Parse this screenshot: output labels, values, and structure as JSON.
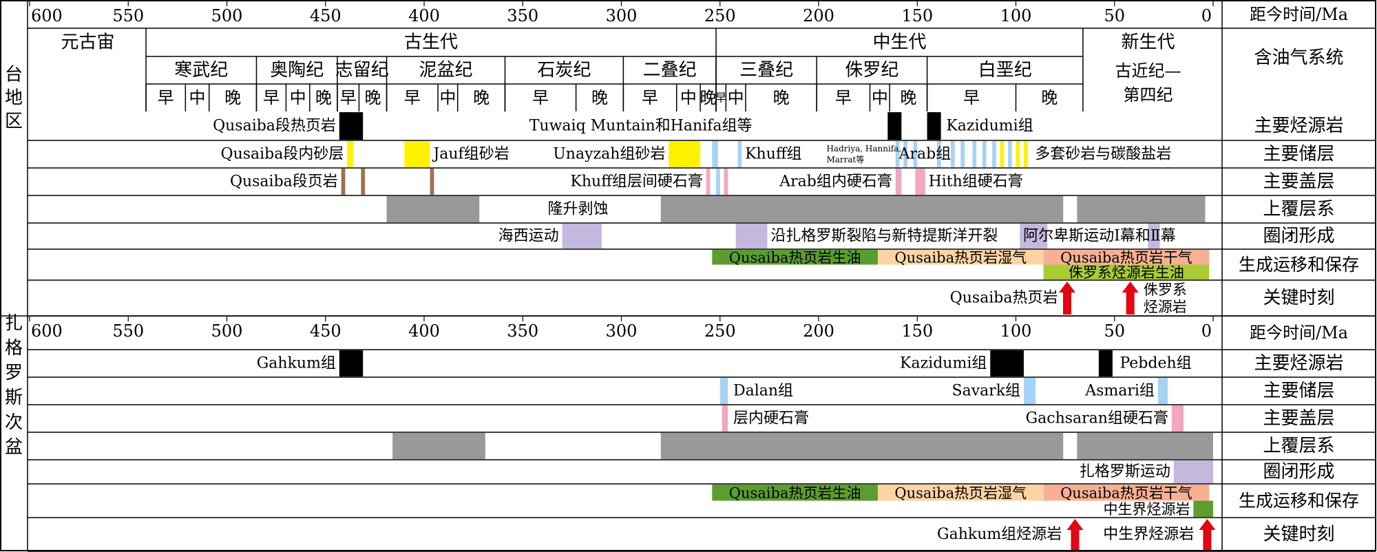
{
  "axis": {
    "ticks": [
      "600",
      "550",
      "500",
      "450",
      "400",
      "350",
      "300",
      "250",
      "200",
      "150",
      "100",
      "50",
      "0"
    ],
    "tick_values": [
      600,
      550,
      500,
      450,
      400,
      350,
      300,
      250,
      200,
      150,
      100,
      50,
      0
    ],
    "unit_label": "距今时间/Ma"
  },
  "regions": [
    {
      "name": "台地区",
      "chars": [
        "台",
        "地",
        "区"
      ]
    },
    {
      "name": "扎格罗斯次盆",
      "chars": [
        "扎",
        "格",
        "罗",
        "斯",
        "次",
        "盆"
      ]
    }
  ],
  "header": {
    "eons": [
      {
        "label": "元古宙",
        "start": 600,
        "end": 541
      },
      {
        "label": "古生代",
        "start": 541,
        "end": 252
      },
      {
        "label": "中生代",
        "start": 252,
        "end": 66
      },
      {
        "label": "新生代",
        "start": 66,
        "end": 0
      }
    ],
    "periods": [
      {
        "label": "寒武纪",
        "start": 541,
        "end": 485
      },
      {
        "label": "奥陶纪",
        "start": 485,
        "end": 444
      },
      {
        "label": "志留纪",
        "start": 444,
        "end": 419
      },
      {
        "label": "泥盆纪",
        "start": 419,
        "end": 359
      },
      {
        "label": "石炭纪",
        "start": 359,
        "end": 299
      },
      {
        "label": "二叠纪",
        "start": 299,
        "end": 252
      },
      {
        "label": "三叠纪",
        "start": 252,
        "end": 201
      },
      {
        "label": "侏罗纪",
        "start": 201,
        "end": 145
      },
      {
        "label": "白垩纪",
        "start": 145,
        "end": 66
      }
    ],
    "epochs": [
      {
        "label": "早",
        "start": 541,
        "end": 521
      },
      {
        "label": "中",
        "start": 521,
        "end": 509
      },
      {
        "label": "晚",
        "start": 509,
        "end": 485
      },
      {
        "label": "早",
        "start": 485,
        "end": 470
      },
      {
        "label": "中",
        "start": 470,
        "end": 458
      },
      {
        "label": "晚",
        "start": 458,
        "end": 444
      },
      {
        "label": "早",
        "start": 444,
        "end": 433
      },
      {
        "label": "晚",
        "start": 433,
        "end": 419
      },
      {
        "label": "早",
        "start": 419,
        "end": 393
      },
      {
        "label": "中",
        "start": 393,
        "end": 383
      },
      {
        "label": "晚",
        "start": 383,
        "end": 359
      },
      {
        "label": "早",
        "start": 359,
        "end": 323
      },
      {
        "label": "晚",
        "start": 323,
        "end": 299
      },
      {
        "label": "早",
        "start": 299,
        "end": 272
      },
      {
        "label": "中",
        "start": 272,
        "end": 260
      },
      {
        "label": "晚",
        "start": 260,
        "end": 252
      },
      {
        "label": "早",
        "start": 252,
        "end": 247
      },
      {
        "label": "中",
        "start": 247,
        "end": 237
      },
      {
        "label": "晚",
        "start": 237,
        "end": 201
      },
      {
        "label": "早",
        "start": 201,
        "end": 174
      },
      {
        "label": "中",
        "start": 174,
        "end": 164
      },
      {
        "label": "晚",
        "start": 164,
        "end": 145
      },
      {
        "label": "早",
        "start": 145,
        "end": 100
      },
      {
        "label": "晚",
        "start": 100,
        "end": 66
      }
    ],
    "cenozoic_label_1": "古近纪—",
    "cenozoic_label_2": "第四纪",
    "system_label": "含油气系统"
  },
  "colors": {
    "black": "#000000",
    "yellow": "#fff200",
    "lightblue": "#a6d3f5",
    "brown": "#a0704e",
    "pink": "#f2a7c0",
    "gray": "#999999",
    "lavender": "#c4b8df",
    "green": "#5b9e2f",
    "peach": "#fcd4a4",
    "salmon": "#f8b094",
    "yellowgreen": "#a9cc35",
    "red": "#e30613"
  },
  "platform": {
    "rows": [
      {
        "label": "主要烃源岩"
      },
      {
        "label": "主要储层"
      },
      {
        "label": "主要盖层"
      },
      {
        "label": "上覆层系"
      },
      {
        "label": "圈闭形成"
      },
      {
        "label": "生成运移和保存"
      },
      {
        "label": "关键时刻"
      }
    ],
    "bars": [
      {
        "row": 0,
        "start": 443,
        "end": 431,
        "color": "black"
      },
      {
        "row": 0,
        "start": 165,
        "end": 158,
        "color": "black"
      },
      {
        "row": 0,
        "start": 145,
        "end": 138,
        "color": "black"
      },
      {
        "row": 1,
        "start": 439,
        "end": 436,
        "color": "yellow"
      },
      {
        "row": 1,
        "start": 410,
        "end": 397,
        "color": "yellow"
      },
      {
        "row": 1,
        "start": 276,
        "end": 260,
        "color": "yellow"
      },
      {
        "row": 1,
        "start": 254,
        "end": 251,
        "color": "lightblue"
      },
      {
        "row": 1,
        "start": 241,
        "end": 239,
        "color": "lightblue"
      },
      {
        "row": 1,
        "start": 161,
        "end": 159,
        "color": "lightblue"
      },
      {
        "row": 1,
        "start": 157,
        "end": 155,
        "color": "lightblue"
      },
      {
        "row": 1,
        "start": 152,
        "end": 150,
        "color": "lightblue"
      },
      {
        "row": 1,
        "start": 140,
        "end": 138,
        "color": "lightblue"
      },
      {
        "row": 1,
        "start": 133,
        "end": 131,
        "color": "lightblue"
      },
      {
        "row": 1,
        "start": 128,
        "end": 126,
        "color": "lightblue"
      },
      {
        "row": 1,
        "start": 122,
        "end": 120,
        "color": "lightblue"
      },
      {
        "row": 1,
        "start": 117,
        "end": 115,
        "color": "lightblue"
      },
      {
        "row": 1,
        "start": 112,
        "end": 110,
        "color": "lightblue"
      },
      {
        "row": 1,
        "start": 108,
        "end": 106,
        "color": "yellow"
      },
      {
        "row": 1,
        "start": 104,
        "end": 102,
        "color": "lightblue"
      },
      {
        "row": 1,
        "start": 100,
        "end": 98,
        "color": "yellow"
      },
      {
        "row": 1,
        "start": 96,
        "end": 94,
        "color": "yellow"
      },
      {
        "row": 2,
        "start": 442,
        "end": 440,
        "color": "brown"
      },
      {
        "row": 2,
        "start": 432,
        "end": 430,
        "color": "brown"
      },
      {
        "row": 2,
        "start": 397,
        "end": 395,
        "color": "brown"
      },
      {
        "row": 2,
        "start": 257,
        "end": 255,
        "color": "pink"
      },
      {
        "row": 2,
        "start": 252,
        "end": 250,
        "color": "lightblue"
      },
      {
        "row": 2,
        "start": 248,
        "end": 246,
        "color": "pink"
      },
      {
        "row": 2,
        "start": 161,
        "end": 158,
        "color": "pink"
      },
      {
        "row": 2,
        "start": 151,
        "end": 146,
        "color": "pink"
      },
      {
        "row": 3,
        "start": 419,
        "end": 372,
        "color": "gray"
      },
      {
        "row": 3,
        "start": 280,
        "end": 76,
        "color": "gray"
      },
      {
        "row": 3,
        "start": 69,
        "end": 4,
        "color": "gray"
      },
      {
        "row": 4,
        "start": 330,
        "end": 310,
        "color": "lavender"
      },
      {
        "row": 4,
        "start": 242,
        "end": 226,
        "color": "lavender"
      },
      {
        "row": 4,
        "start": 98,
        "end": 84,
        "color": "lavender"
      },
      {
        "row": 4,
        "start": 33,
        "end": 27,
        "color": "lavender"
      },
      {
        "row": 5,
        "start": 254,
        "end": 170,
        "color": "green",
        "half": "top"
      },
      {
        "row": 5,
        "start": 170,
        "end": 86,
        "color": "peach",
        "half": "top"
      },
      {
        "row": 5,
        "start": 86,
        "end": 2,
        "color": "salmon",
        "half": "top"
      },
      {
        "row": 5,
        "start": 86,
        "end": 2,
        "color": "yellowgreen",
        "half": "bottom"
      }
    ],
    "labels": [
      {
        "text": "Qusaiba段热页岩",
        "row": 0,
        "at": 444,
        "anchor": "end"
      },
      {
        "text": "Tuwaiq Muntain和Hanifa组等",
        "row": 0,
        "at": 233,
        "anchor": "end"
      },
      {
        "text": "Kazidumi组",
        "row": 0,
        "at": 136,
        "anchor": "start"
      },
      {
        "text": "Qusaiba段内砂层",
        "row": 1,
        "at": 440,
        "anchor": "end"
      },
      {
        "text": "Jauf组砂岩",
        "row": 1,
        "at": 396,
        "anchor": "start"
      },
      {
        "text": "Unayzah组砂岩",
        "row": 1,
        "at": 277,
        "anchor": "end"
      },
      {
        "text": "Khuff组",
        "row": 1,
        "at": 238,
        "anchor": "start"
      },
      {
        "text": "Arab组",
        "row": 1,
        "at": 160,
        "anchor": "start"
      },
      {
        "text": "多套砂岩与碳酸盐岩",
        "row": 1,
        "at": 91,
        "anchor": "start"
      },
      {
        "text": "Qusaiba段页岩",
        "row": 2,
        "at": 443,
        "anchor": "end"
      },
      {
        "text": "Khuff组层间硬石膏",
        "row": 2,
        "at": 258,
        "anchor": "end"
      },
      {
        "text": "Arab组内硬石膏",
        "row": 2,
        "at": 162,
        "anchor": "end"
      },
      {
        "text": "Hith组硬石膏",
        "row": 2,
        "at": 145,
        "anchor": "start"
      },
      {
        "text": "隆升剥蚀",
        "row": 3,
        "at": 322,
        "anchor": "middle"
      },
      {
        "text": "海西运动",
        "row": 4,
        "at": 331,
        "anchor": "end"
      },
      {
        "text": "沿扎格罗斯裂陷与新特提斯洋开裂",
        "row": 4,
        "at": 225,
        "anchor": "start"
      },
      {
        "text": "阿尔卑斯运动Ⅰ幕和Ⅱ幕",
        "row": 4,
        "at": 97,
        "anchor": "start"
      },
      {
        "text": "Qusaiba热页岩生油",
        "row": 5,
        "at": 212,
        "anchor": "middle",
        "half": "top"
      },
      {
        "text": "Qusaiba热页岩湿气",
        "row": 5,
        "at": 128,
        "anchor": "middle",
        "half": "top"
      },
      {
        "text": "Qusaiba热页岩干气",
        "row": 5,
        "at": 44,
        "anchor": "middle",
        "half": "top"
      },
      {
        "text": "侏罗系烃源岩生油",
        "row": 5,
        "at": 44,
        "anchor": "middle",
        "half": "bottom"
      },
      {
        "text": "Qusaiba热页岩",
        "row": 6,
        "at": 78,
        "anchor": "end"
      },
      {
        "text": "侏罗系",
        "row": 6,
        "at": 36,
        "anchor": "start",
        "half": "top"
      },
      {
        "text": "烃源岩",
        "row": 6,
        "at": 36,
        "anchor": "start",
        "half": "bottom"
      }
    ],
    "subscript_1": "Hadriya, Hannifa,",
    "subscript_2": "Marrat等",
    "arrows": [
      {
        "at": 74
      },
      {
        "at": 42
      }
    ]
  },
  "zagros": {
    "rows": [
      {
        "label": "主要烃源岩"
      },
      {
        "label": "主要储层"
      },
      {
        "label": "主要盖层"
      },
      {
        "label": "上覆层系"
      },
      {
        "label": "圈闭形成"
      },
      {
        "label": "生成运移和保存"
      },
      {
        "label": "关键时刻"
      }
    ],
    "bars": [
      {
        "row": 0,
        "start": 443,
        "end": 431,
        "color": "black"
      },
      {
        "row": 0,
        "start": 113,
        "end": 96,
        "color": "black"
      },
      {
        "row": 0,
        "start": 58,
        "end": 51,
        "color": "black"
      },
      {
        "row": 1,
        "start": 250,
        "end": 246,
        "color": "lightblue"
      },
      {
        "row": 1,
        "start": 96,
        "end": 90,
        "color": "lightblue"
      },
      {
        "row": 1,
        "start": 28,
        "end": 23,
        "color": "lightblue"
      },
      {
        "row": 2,
        "start": 249,
        "end": 246,
        "color": "pink"
      },
      {
        "row": 2,
        "start": 21,
        "end": 15,
        "color": "pink"
      },
      {
        "row": 3,
        "start": 416,
        "end": 369,
        "color": "gray"
      },
      {
        "row": 3,
        "start": 280,
        "end": 76,
        "color": "gray"
      },
      {
        "row": 3,
        "start": 69,
        "end": 0,
        "color": "gray"
      },
      {
        "row": 4,
        "start": 20,
        "end": 0,
        "color": "lavender"
      },
      {
        "row": 5,
        "start": 254,
        "end": 170,
        "color": "green",
        "half": "top"
      },
      {
        "row": 5,
        "start": 170,
        "end": 86,
        "color": "peach",
        "half": "top"
      },
      {
        "row": 5,
        "start": 86,
        "end": 2,
        "color": "salmon",
        "half": "top"
      },
      {
        "row": 5,
        "start": 10,
        "end": 0,
        "color": "green",
        "half": "bottom"
      }
    ],
    "labels": [
      {
        "text": "Gahkum组",
        "row": 0,
        "at": 444,
        "anchor": "end"
      },
      {
        "text": "Kazidumi组",
        "row": 0,
        "at": 114,
        "anchor": "end"
      },
      {
        "text": "Pebdeh组",
        "row": 0,
        "at": 48,
        "anchor": "start"
      },
      {
        "text": "Dalan组",
        "row": 1,
        "at": 244,
        "anchor": "start"
      },
      {
        "text": "Savark组",
        "row": 1,
        "at": 97,
        "anchor": "end"
      },
      {
        "text": "Asmari组",
        "row": 1,
        "at": 29,
        "anchor": "end"
      },
      {
        "text": "层内硬石膏",
        "row": 2,
        "at": 244,
        "anchor": "start"
      },
      {
        "text": "Gachsaran组硬石膏",
        "row": 2,
        "at": 22,
        "anchor": "end"
      },
      {
        "text": "扎格罗斯运动",
        "row": 4,
        "at": 21,
        "anchor": "end"
      },
      {
        "text": "Qusaiba热页岩生油",
        "row": 5,
        "at": 212,
        "anchor": "middle",
        "half": "top"
      },
      {
        "text": "Qusaiba热页岩湿气",
        "row": 5,
        "at": 128,
        "anchor": "middle",
        "half": "top"
      },
      {
        "text": "Qusaiba热页岩干气",
        "row": 5,
        "at": 44,
        "anchor": "middle",
        "half": "top"
      },
      {
        "text": "中生界烃源岩",
        "row": 5,
        "at": 11,
        "anchor": "end",
        "half": "bottom"
      },
      {
        "text": "Gahkum组烃源岩",
        "row": 6,
        "at": 76,
        "anchor": "end"
      },
      {
        "text": "中生界烃源岩",
        "row": 6,
        "at": 9,
        "anchor": "end"
      }
    ],
    "arrows": [
      {
        "at": 70
      },
      {
        "at": 3
      }
    ]
  }
}
